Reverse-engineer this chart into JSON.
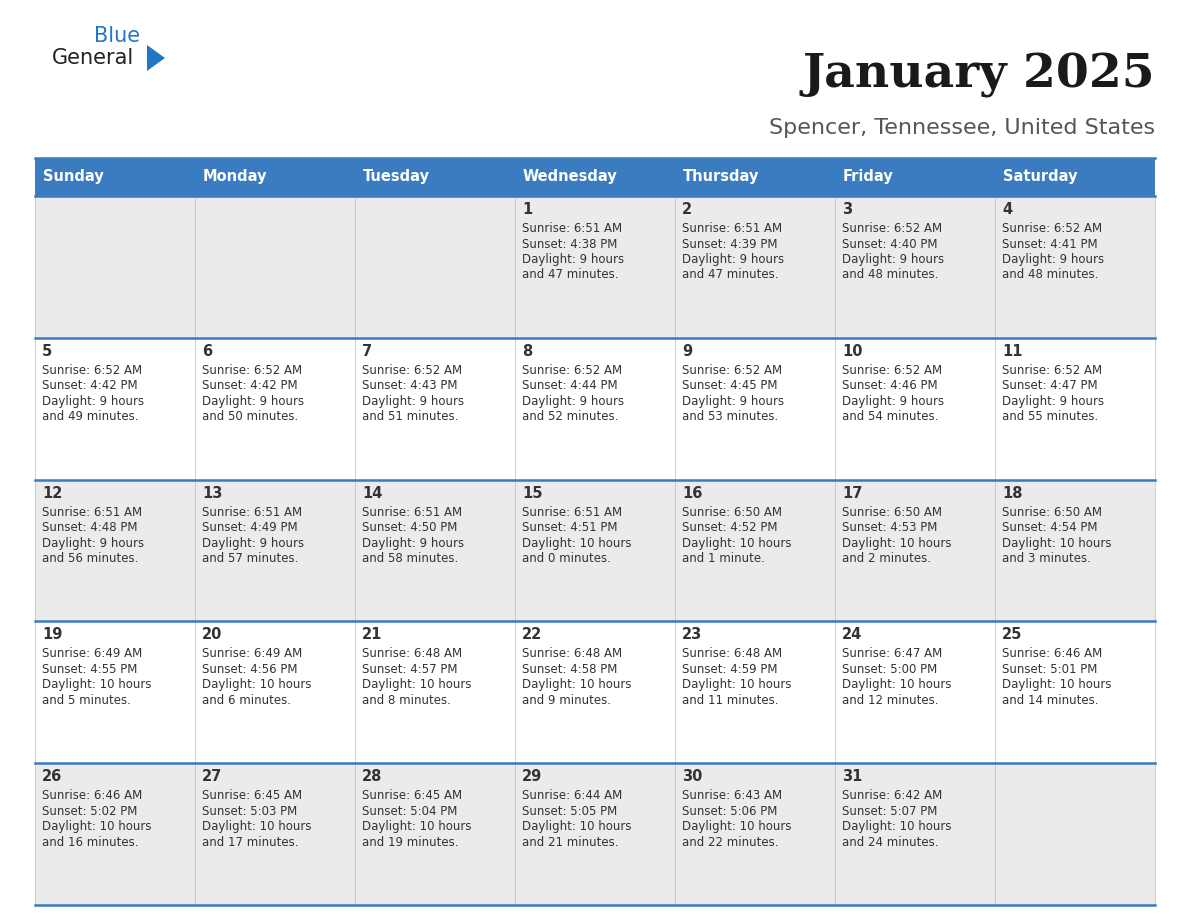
{
  "title": "January 2025",
  "subtitle": "Spencer, Tennessee, United States",
  "header_bg_color": "#3b7bbf",
  "header_text_color": "#ffffff",
  "cell_bg_row0": "#ebebeb",
  "cell_bg_row1": "#ffffff",
  "border_color": "#3b7bbf",
  "text_color": "#333333",
  "days_of_week": [
    "Sunday",
    "Monday",
    "Tuesday",
    "Wednesday",
    "Thursday",
    "Friday",
    "Saturday"
  ],
  "calendar_data": [
    [
      {
        "day": "",
        "sunrise": "",
        "sunset": "",
        "daylight": ""
      },
      {
        "day": "",
        "sunrise": "",
        "sunset": "",
        "daylight": ""
      },
      {
        "day": "",
        "sunrise": "",
        "sunset": "",
        "daylight": ""
      },
      {
        "day": "1",
        "sunrise": "6:51 AM",
        "sunset": "4:38 PM",
        "daylight": "9 hours\nand 47 minutes."
      },
      {
        "day": "2",
        "sunrise": "6:51 AM",
        "sunset": "4:39 PM",
        "daylight": "9 hours\nand 47 minutes."
      },
      {
        "day": "3",
        "sunrise": "6:52 AM",
        "sunset": "4:40 PM",
        "daylight": "9 hours\nand 48 minutes."
      },
      {
        "day": "4",
        "sunrise": "6:52 AM",
        "sunset": "4:41 PM",
        "daylight": "9 hours\nand 48 minutes."
      }
    ],
    [
      {
        "day": "5",
        "sunrise": "6:52 AM",
        "sunset": "4:42 PM",
        "daylight": "9 hours\nand 49 minutes."
      },
      {
        "day": "6",
        "sunrise": "6:52 AM",
        "sunset": "4:42 PM",
        "daylight": "9 hours\nand 50 minutes."
      },
      {
        "day": "7",
        "sunrise": "6:52 AM",
        "sunset": "4:43 PM",
        "daylight": "9 hours\nand 51 minutes."
      },
      {
        "day": "8",
        "sunrise": "6:52 AM",
        "sunset": "4:44 PM",
        "daylight": "9 hours\nand 52 minutes."
      },
      {
        "day": "9",
        "sunrise": "6:52 AM",
        "sunset": "4:45 PM",
        "daylight": "9 hours\nand 53 minutes."
      },
      {
        "day": "10",
        "sunrise": "6:52 AM",
        "sunset": "4:46 PM",
        "daylight": "9 hours\nand 54 minutes."
      },
      {
        "day": "11",
        "sunrise": "6:52 AM",
        "sunset": "4:47 PM",
        "daylight": "9 hours\nand 55 minutes."
      }
    ],
    [
      {
        "day": "12",
        "sunrise": "6:51 AM",
        "sunset": "4:48 PM",
        "daylight": "9 hours\nand 56 minutes."
      },
      {
        "day": "13",
        "sunrise": "6:51 AM",
        "sunset": "4:49 PM",
        "daylight": "9 hours\nand 57 minutes."
      },
      {
        "day": "14",
        "sunrise": "6:51 AM",
        "sunset": "4:50 PM",
        "daylight": "9 hours\nand 58 minutes."
      },
      {
        "day": "15",
        "sunrise": "6:51 AM",
        "sunset": "4:51 PM",
        "daylight": "10 hours\nand 0 minutes."
      },
      {
        "day": "16",
        "sunrise": "6:50 AM",
        "sunset": "4:52 PM",
        "daylight": "10 hours\nand 1 minute."
      },
      {
        "day": "17",
        "sunrise": "6:50 AM",
        "sunset": "4:53 PM",
        "daylight": "10 hours\nand 2 minutes."
      },
      {
        "day": "18",
        "sunrise": "6:50 AM",
        "sunset": "4:54 PM",
        "daylight": "10 hours\nand 3 minutes."
      }
    ],
    [
      {
        "day": "19",
        "sunrise": "6:49 AM",
        "sunset": "4:55 PM",
        "daylight": "10 hours\nand 5 minutes."
      },
      {
        "day": "20",
        "sunrise": "6:49 AM",
        "sunset": "4:56 PM",
        "daylight": "10 hours\nand 6 minutes."
      },
      {
        "day": "21",
        "sunrise": "6:48 AM",
        "sunset": "4:57 PM",
        "daylight": "10 hours\nand 8 minutes."
      },
      {
        "day": "22",
        "sunrise": "6:48 AM",
        "sunset": "4:58 PM",
        "daylight": "10 hours\nand 9 minutes."
      },
      {
        "day": "23",
        "sunrise": "6:48 AM",
        "sunset": "4:59 PM",
        "daylight": "10 hours\nand 11 minutes."
      },
      {
        "day": "24",
        "sunrise": "6:47 AM",
        "sunset": "5:00 PM",
        "daylight": "10 hours\nand 12 minutes."
      },
      {
        "day": "25",
        "sunrise": "6:46 AM",
        "sunset": "5:01 PM",
        "daylight": "10 hours\nand 14 minutes."
      }
    ],
    [
      {
        "day": "26",
        "sunrise": "6:46 AM",
        "sunset": "5:02 PM",
        "daylight": "10 hours\nand 16 minutes."
      },
      {
        "day": "27",
        "sunrise": "6:45 AM",
        "sunset": "5:03 PM",
        "daylight": "10 hours\nand 17 minutes."
      },
      {
        "day": "28",
        "sunrise": "6:45 AM",
        "sunset": "5:04 PM",
        "daylight": "10 hours\nand 19 minutes."
      },
      {
        "day": "29",
        "sunrise": "6:44 AM",
        "sunset": "5:05 PM",
        "daylight": "10 hours\nand 21 minutes."
      },
      {
        "day": "30",
        "sunrise": "6:43 AM",
        "sunset": "5:06 PM",
        "daylight": "10 hours\nand 22 minutes."
      },
      {
        "day": "31",
        "sunrise": "6:42 AM",
        "sunset": "5:07 PM",
        "daylight": "10 hours\nand 24 minutes."
      },
      {
        "day": "",
        "sunrise": "",
        "sunset": "",
        "daylight": ""
      }
    ]
  ],
  "logo_general_color": "#222222",
  "logo_blue_color": "#2176c7",
  "logo_triangle_color": "#2176c7",
  "title_color": "#1a1a1a",
  "subtitle_color": "#555555"
}
